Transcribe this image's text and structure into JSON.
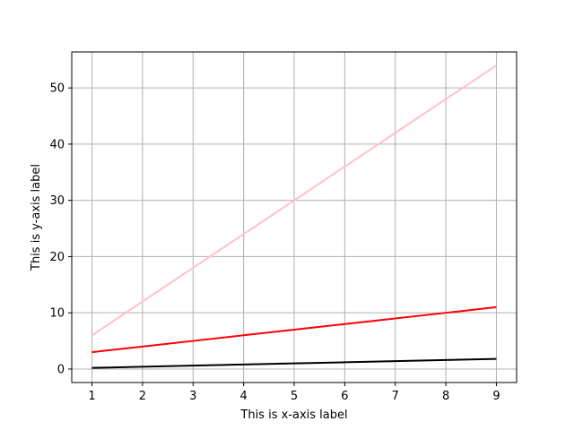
{
  "chart_data": {
    "type": "line",
    "title": "",
    "xlabel": "This is x-axis label",
    "ylabel": "This is y-axis label",
    "x": [
      1,
      2,
      3,
      4,
      5,
      6,
      7,
      8,
      9
    ],
    "xlim": [
      0.6,
      9.4
    ],
    "ylim": [
      -2.4,
      56.4
    ],
    "xticks": [
      1,
      2,
      3,
      4,
      5,
      6,
      7,
      8,
      9
    ],
    "yticks": [
      0,
      10,
      20,
      30,
      40,
      50
    ],
    "grid": true,
    "legend": "none",
    "series": [
      {
        "color": "#ffc0cb",
        "values": [
          6,
          12,
          18,
          24,
          30,
          36,
          42,
          48,
          54
        ]
      },
      {
        "color": "#ff0000",
        "values": [
          3,
          4,
          5,
          6,
          7,
          8,
          9,
          10,
          11
        ]
      },
      {
        "color": "#000000",
        "values": [
          0.2,
          0.4,
          0.6,
          0.8,
          1.0,
          1.2,
          1.4,
          1.6,
          1.8
        ]
      }
    ]
  }
}
